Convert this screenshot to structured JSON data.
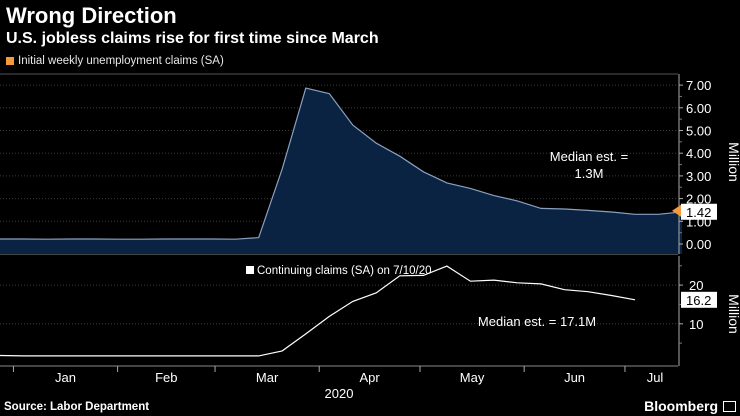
{
  "header": {
    "title": "Wrong Direction",
    "subtitle": "U.S. jobless claims rise for first time since March"
  },
  "footer": {
    "source": "Source: Labor Department",
    "brand": "Bloomberg"
  },
  "colors": {
    "background": "#000000",
    "area_fill": "#0b2343",
    "area_line": "#8aa0bf",
    "legend1_swatch": "#f29a3c",
    "continuing_line": "#ffffff",
    "grid": "#3a3a3a",
    "last_label_bg": "#ffffff"
  },
  "chart_data": [
    {
      "type": "area",
      "legend": "Initial weekly unemployment claims (SA)",
      "ylabel": "Million",
      "ylim": [
        -0.2,
        7.5
      ],
      "yticks": [
        "7.00",
        "6.00",
        "5.00",
        "4.00",
        "3.00",
        "2.00",
        "1.00",
        "0.00"
      ],
      "grid": true,
      "legend_position": "top-left",
      "annotation": [
        "Median est. =",
        "1.3M"
      ],
      "last_value_label": "1.42",
      "x": [
        "2019-12-28",
        "2020-01-04",
        "2020-01-11",
        "2020-01-18",
        "2020-01-25",
        "2020-02-01",
        "2020-02-08",
        "2020-02-15",
        "2020-02-22",
        "2020-02-29",
        "2020-03-07",
        "2020-03-14",
        "2020-03-21",
        "2020-03-28",
        "2020-04-04",
        "2020-04-11",
        "2020-04-18",
        "2020-04-25",
        "2020-05-02",
        "2020-05-09",
        "2020-05-16",
        "2020-05-23",
        "2020-05-30",
        "2020-06-06",
        "2020-06-13",
        "2020-06-20",
        "2020-06-27",
        "2020-07-04",
        "2020-07-11",
        "2020-07-18"
      ],
      "y": [
        0.22,
        0.22,
        0.21,
        0.22,
        0.22,
        0.21,
        0.21,
        0.22,
        0.22,
        0.22,
        0.21,
        0.28,
        3.31,
        6.87,
        6.62,
        5.24,
        4.44,
        3.87,
        3.18,
        2.69,
        2.45,
        2.13,
        1.9,
        1.57,
        1.54,
        1.48,
        1.41,
        1.31,
        1.31,
        1.42
      ],
      "series_name": "Initial weekly unemployment claims (SA)"
    },
    {
      "type": "line",
      "legend": "Continuing claims (SA) on 7/10/20",
      "ylabel": "Million",
      "ylim": [
        0,
        28
      ],
      "yticks": [
        "20",
        "10"
      ],
      "grid": true,
      "legend_position": "top-center",
      "annotation": [
        "Median est. = 17.1M"
      ],
      "last_value_label": "16.2",
      "x": [
        "2019-12-28",
        "2020-01-04",
        "2020-01-11",
        "2020-01-18",
        "2020-01-25",
        "2020-02-01",
        "2020-02-08",
        "2020-02-15",
        "2020-02-22",
        "2020-02-29",
        "2020-03-07",
        "2020-03-14",
        "2020-03-21",
        "2020-03-28",
        "2020-04-04",
        "2020-04-11",
        "2020-04-18",
        "2020-04-25",
        "2020-05-02",
        "2020-05-09",
        "2020-05-16",
        "2020-05-23",
        "2020-05-30",
        "2020-06-06",
        "2020-06-13",
        "2020-06-20",
        "2020-06-27",
        "2020-07-04"
      ],
      "y": [
        1.8,
        1.7,
        1.7,
        1.7,
        1.7,
        1.7,
        1.7,
        1.7,
        1.7,
        1.7,
        1.7,
        1.7,
        3.0,
        7.4,
        11.9,
        15.8,
        18.0,
        22.4,
        22.5,
        24.9,
        21.0,
        21.3,
        20.6,
        20.3,
        18.8,
        18.3,
        17.3,
        16.2
      ],
      "series_name": "Continuing claims (SA) on 7/10/20"
    }
  ],
  "xaxis": {
    "ticks": [
      "Jan",
      "Feb",
      "Mar",
      "Apr",
      "May",
      "Jun",
      "Jul"
    ],
    "year": "2020"
  }
}
